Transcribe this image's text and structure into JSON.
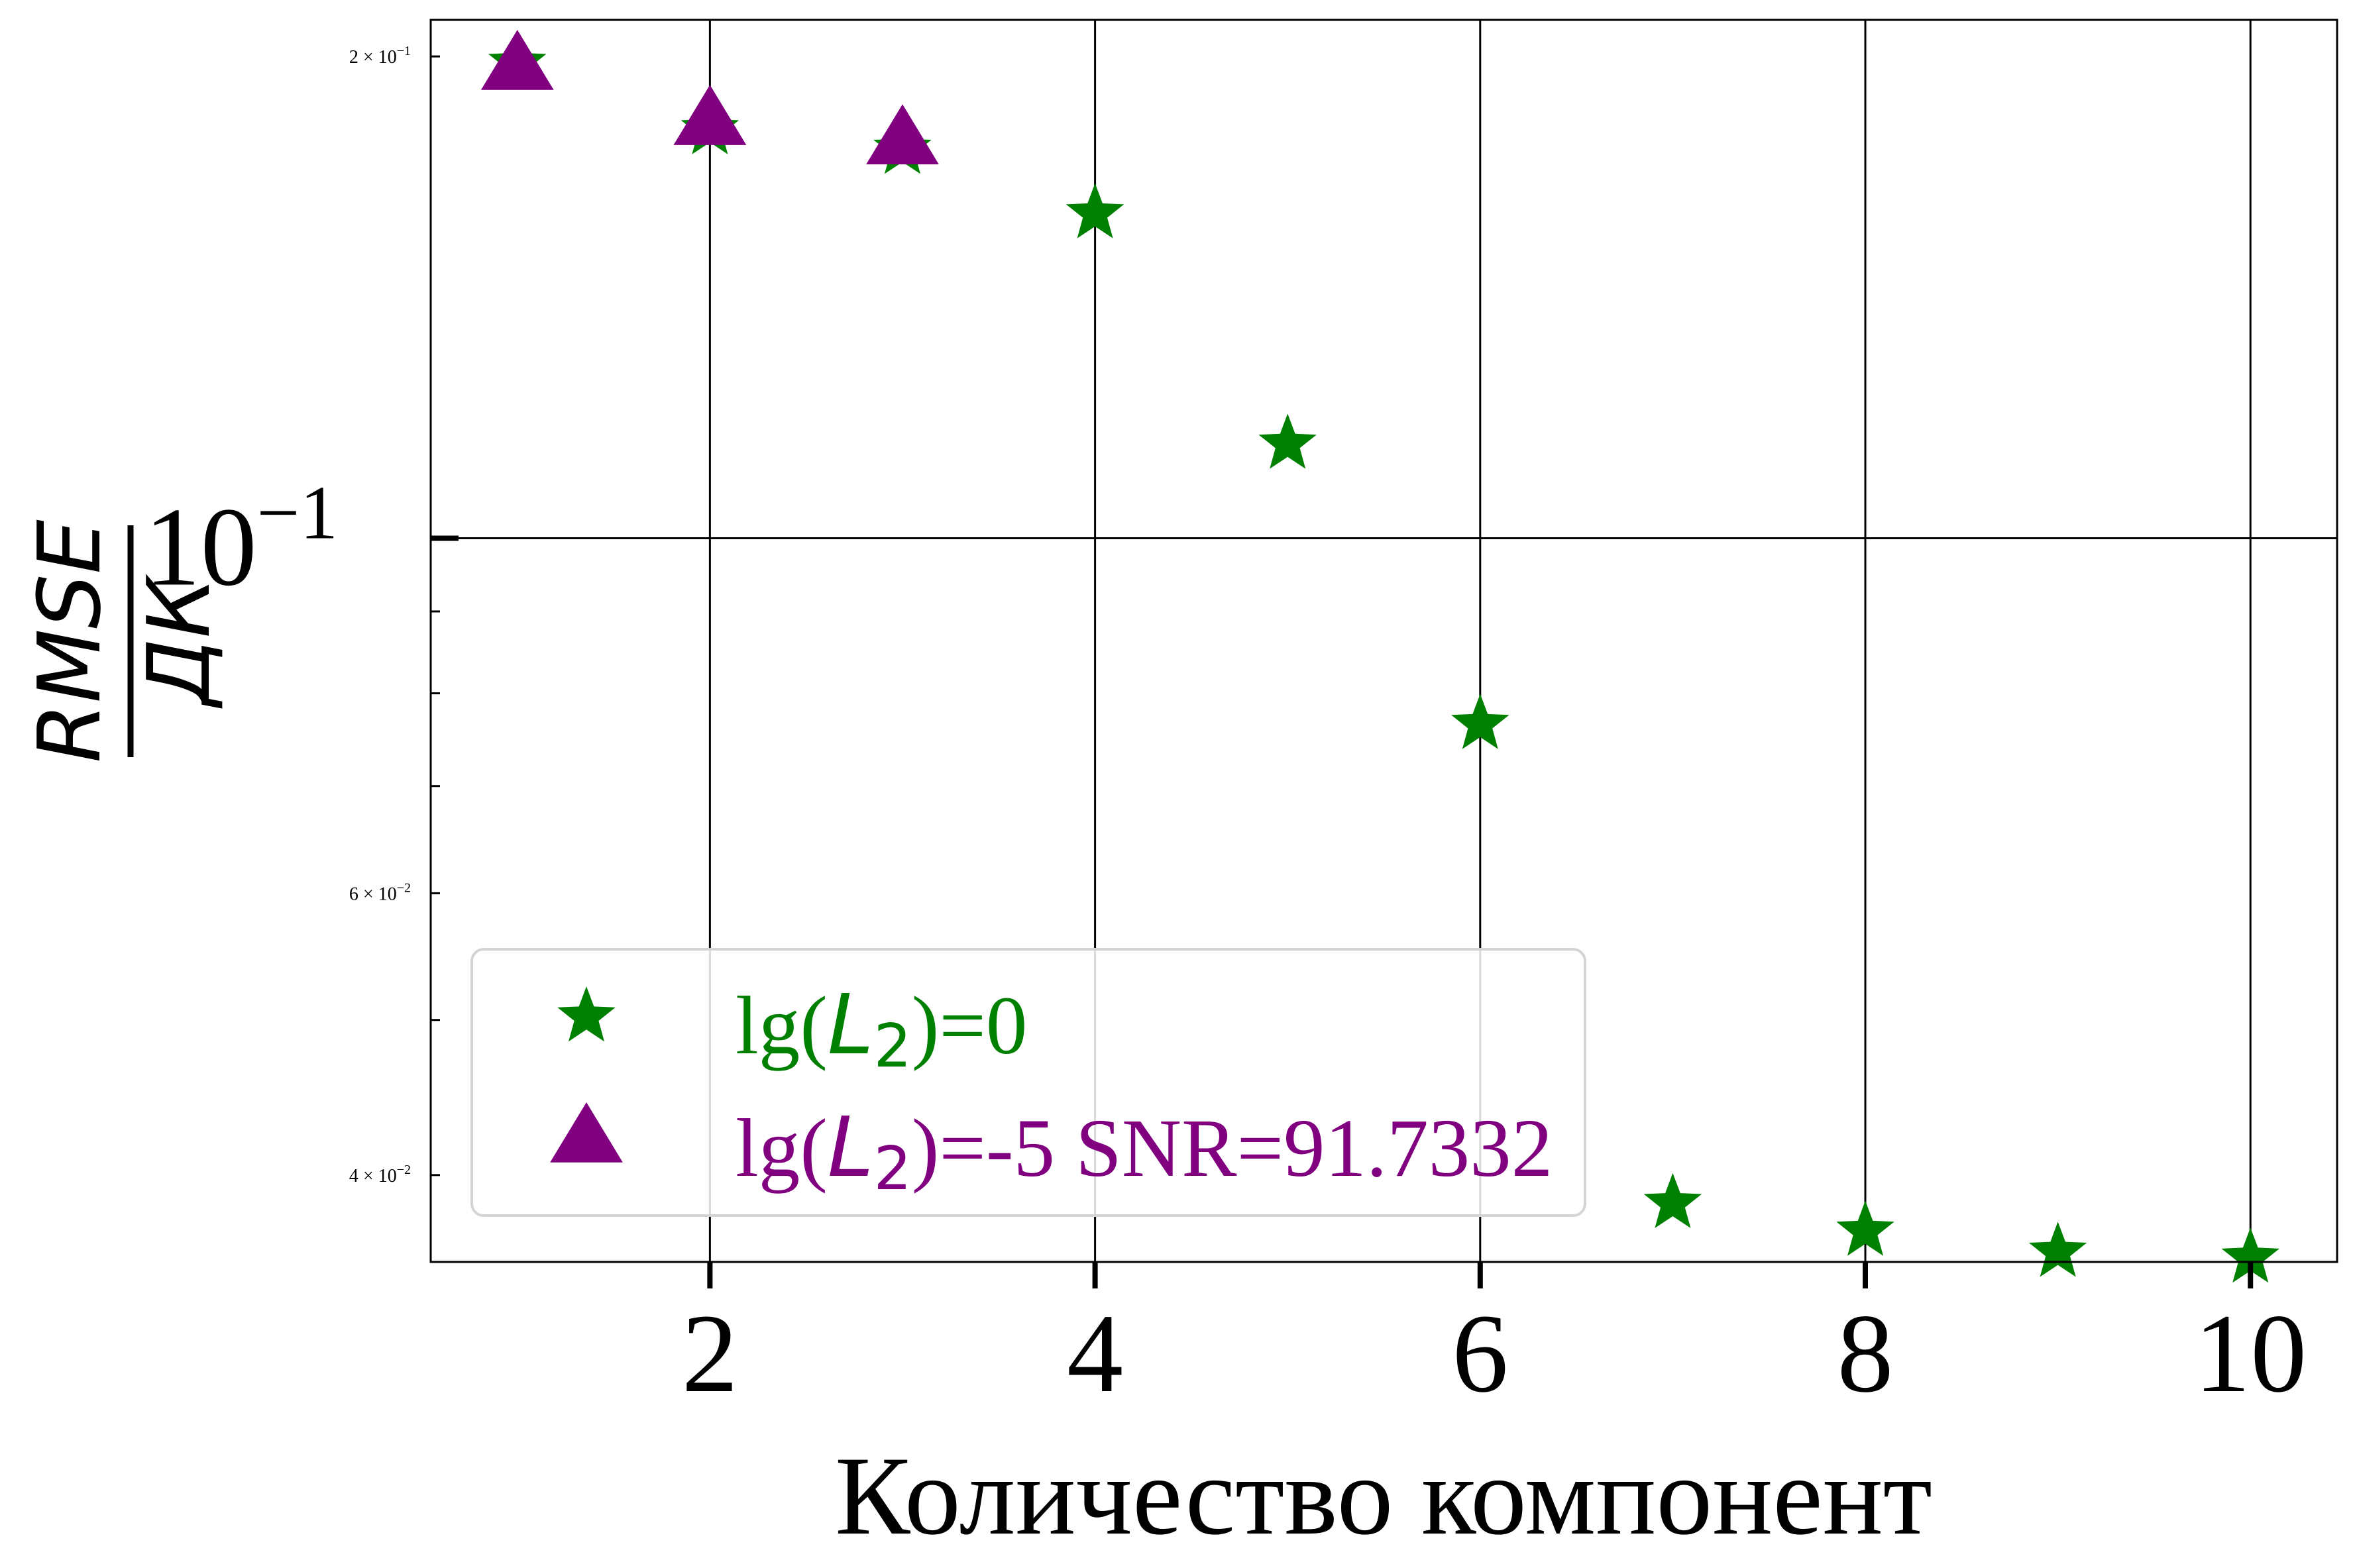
{
  "chart_data": {
    "type": "scatter",
    "xlabel": "Количество компонент",
    "ylabel": {
      "numerator": "RMSE",
      "denominator": "ДК"
    },
    "yscale": "log",
    "xlim": [
      0.55,
      10.45
    ],
    "ylim": [
      0.0353,
      0.2108
    ],
    "grid": true,
    "x_ticks": [
      2,
      4,
      6,
      8,
      10
    ],
    "y_major_ticks": [
      {
        "value": 0.1,
        "base": "10",
        "exp": "−1"
      }
    ],
    "y_minor_labeled_ticks": [
      {
        "value": 0.2,
        "mant": "2",
        "exp": "−1"
      },
      {
        "value": 0.06,
        "mant": "6",
        "exp": "−2"
      },
      {
        "value": 0.04,
        "mant": "4",
        "exp": "−2"
      }
    ],
    "y_minor_unlabeled_ticks": [
      0.05,
      0.07,
      0.08,
      0.09
    ],
    "legend_position": "lower-left",
    "series": [
      {
        "legend": {
          "prefix": "lg(",
          "var": "L",
          "sub": "2",
          "suffix": ")=0"
        },
        "marker": "star",
        "color": "#008000",
        "x": [
          1,
          2,
          3,
          4,
          5,
          6,
          7,
          8,
          9,
          10
        ],
        "y": [
          0.198,
          0.18,
          0.175,
          0.1595,
          0.1145,
          0.0765,
          0.0384,
          0.0369,
          0.0358,
          0.0355
        ]
      },
      {
        "legend": {
          "prefix": "lg(",
          "var": "L",
          "sub": "2",
          "suffix": ")=-5 SNR=91.7332"
        },
        "marker": "triangle",
        "color": "#800080",
        "x": [
          1,
          2,
          3
        ],
        "y": [
          0.197,
          0.182,
          0.177
        ]
      }
    ]
  }
}
